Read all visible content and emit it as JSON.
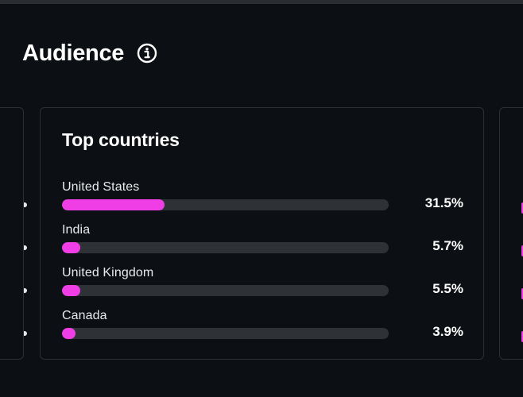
{
  "header": {
    "title": "Audience",
    "info_icon": "info-circle-icon"
  },
  "top_countries": {
    "title": "Top countries",
    "accent_color": "#f03ee6",
    "track_color": "#2e3237",
    "items": [
      {
        "name": "United States",
        "percent_label": "31.5%",
        "percent": 31.5
      },
      {
        "name": "India",
        "percent_label": "5.7%",
        "percent": 5.7
      },
      {
        "name": "United Kingdom",
        "percent_label": "5.5%",
        "percent": 5.5
      },
      {
        "name": "Canada",
        "percent_label": "3.9%",
        "percent": 3.9
      }
    ]
  }
}
